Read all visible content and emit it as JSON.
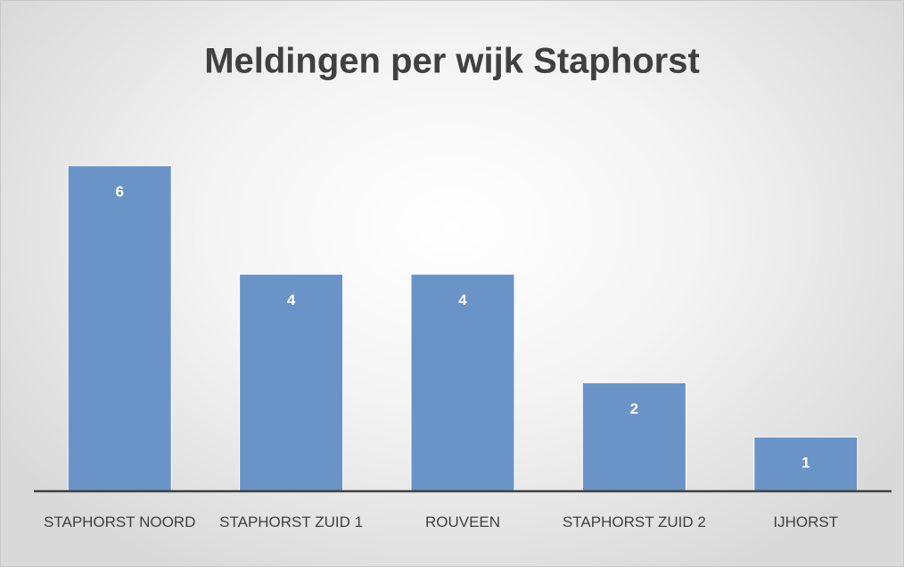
{
  "chart_data": {
    "type": "bar",
    "title": "Meldingen per wijk Staphorst",
    "categories": [
      "STAPHORST NOORD",
      "STAPHORST ZUID 1",
      "ROUVEEN",
      "STAPHORST ZUID 2",
      "IJHORST"
    ],
    "values": [
      6,
      4,
      4,
      2,
      1
    ],
    "color": "#6a93c8",
    "ylim": [
      0,
      7
    ]
  }
}
